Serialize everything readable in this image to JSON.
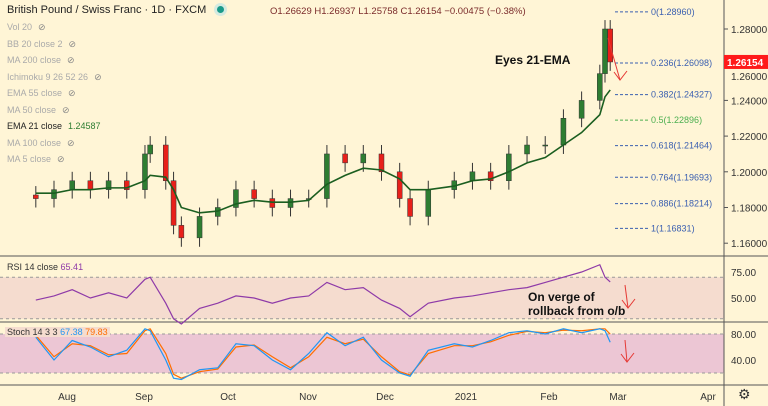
{
  "header": {
    "title": "British Pound / Swiss Franc · 1D · FXCM",
    "open": "O1.26629",
    "high": "H1.26937",
    "low": "L1.25758",
    "close": "C1.26154",
    "change": "−0.00475 (−0.38%)"
  },
  "indicators": [
    {
      "label": "Vol 20",
      "hidden": true
    },
    {
      "label": "BB 20 close 2",
      "hidden": true
    },
    {
      "label": "MA 200 close",
      "hidden": true
    },
    {
      "label": "Ichimoku 9 26 52 26",
      "hidden": true
    },
    {
      "label": "EMA 55 close",
      "hidden": true
    },
    {
      "label": "MA 50 close",
      "hidden": true
    },
    {
      "label": "EMA 21 close",
      "value": "1.24587",
      "hidden": false
    },
    {
      "label": "MA 100 close",
      "hidden": true
    },
    {
      "label": "MA 5 close",
      "hidden": true
    }
  ],
  "annotations": {
    "ema_note": "Eyes 21-EMA",
    "rsi_note_1": "On verge of",
    "rsi_note_2": "rollback from o/b"
  },
  "colors": {
    "up": "#2e7d32",
    "down": "#e8201a",
    "ema": "#1b5e20",
    "rsi": "#8e3aa8",
    "stoch_k": "#2196f3",
    "stoch_d": "#ff6d00",
    "current_price_bg": "#ff1a1a"
  },
  "chart_data": [
    {
      "type": "candlestick",
      "title": "British Pound / Swiss Franc · 1D · FXCM",
      "dates": [
        "2020-07-20",
        "2020-07-27",
        "2020-08-03",
        "2020-08-10",
        "2020-08-17",
        "2020-08-24",
        "2020-08-31",
        "2020-09-02",
        "2020-09-08",
        "2020-09-11",
        "2020-09-14",
        "2020-09-21",
        "2020-09-28",
        "2020-10-05",
        "2020-10-12",
        "2020-10-19",
        "2020-10-26",
        "2020-11-02",
        "2020-11-09",
        "2020-11-16",
        "2020-11-23",
        "2020-11-30",
        "2020-12-07",
        "2020-12-11",
        "2020-12-18",
        "2020-12-28",
        "2021-01-04",
        "2021-01-11",
        "2021-01-18",
        "2021-01-25",
        "2021-02-01",
        "2021-02-08",
        "2021-02-15",
        "2021-02-22",
        "2021-02-24",
        "2021-02-26"
      ],
      "close": [
        1.185,
        1.19,
        1.195,
        1.19,
        1.195,
        1.19,
        1.21,
        1.215,
        1.195,
        1.17,
        1.163,
        1.175,
        1.18,
        1.19,
        1.185,
        1.18,
        1.185,
        1.185,
        1.21,
        1.205,
        1.21,
        1.2,
        1.185,
        1.175,
        1.19,
        1.195,
        1.2,
        1.195,
        1.21,
        1.215,
        1.215,
        1.23,
        1.24,
        1.255,
        1.28,
        1.26154
      ],
      "ema21": [
        1.188,
        1.188,
        1.19,
        1.19,
        1.191,
        1.191,
        1.195,
        1.198,
        1.197,
        1.19,
        1.18,
        1.177,
        1.178,
        1.182,
        1.184,
        1.183,
        1.183,
        1.184,
        1.193,
        1.198,
        1.202,
        1.201,
        1.196,
        1.19,
        1.19,
        1.192,
        1.195,
        1.196,
        1.2,
        1.205,
        1.208,
        1.215,
        1.222,
        1.232,
        1.242,
        1.24587
      ],
      "ylim": [
        1.15,
        1.295
      ],
      "y_ticks": [
        "1.28000",
        "1.26000",
        "1.24000",
        "1.22000",
        "1.20000",
        "1.18000",
        "1.16000"
      ],
      "current_price": "1.26154",
      "fib_levels": [
        {
          "ratio": "0",
          "price": "1.28960"
        },
        {
          "ratio": "0.236",
          "price": "1.26098"
        },
        {
          "ratio": "0.382",
          "price": "1.24327"
        },
        {
          "ratio": "0.5",
          "price": "1.22896"
        },
        {
          "ratio": "0.618",
          "price": "1.21464"
        },
        {
          "ratio": "0.764",
          "price": "1.19693"
        },
        {
          "ratio": "0.886",
          "price": "1.18214"
        },
        {
          "ratio": "1",
          "price": "1.16831"
        }
      ],
      "x_ticks": [
        "Aug",
        "Sep",
        "Oct",
        "Nov",
        "Dec",
        "2021",
        "Feb",
        "Mar",
        "Apr"
      ]
    },
    {
      "type": "line",
      "title": "RSI 14 close",
      "last_value": "65.41",
      "ylim": [
        20,
        90
      ],
      "bands": [
        30,
        70
      ],
      "y_ticks": [
        "75.00",
        "50.00"
      ],
      "values": [
        48,
        52,
        58,
        50,
        55,
        50,
        68,
        70,
        45,
        30,
        25,
        40,
        45,
        52,
        50,
        45,
        50,
        52,
        65,
        58,
        60,
        48,
        40,
        32,
        45,
        50,
        52,
        55,
        58,
        60,
        65,
        70,
        75,
        82,
        70,
        65.41
      ]
    },
    {
      "type": "line",
      "title": "Stoch 14 3 3",
      "k_value": "67.38",
      "d_value": "79.83",
      "ylim": [
        0,
        100
      ],
      "bands": [
        20,
        80
      ],
      "y_ticks": [
        "80.00",
        "40.00"
      ],
      "k": [
        75,
        40,
        70,
        60,
        45,
        55,
        88,
        85,
        40,
        12,
        10,
        25,
        28,
        65,
        62,
        40,
        25,
        50,
        82,
        62,
        75,
        40,
        20,
        15,
        55,
        65,
        60,
        70,
        82,
        85,
        80,
        88,
        82,
        88,
        85,
        67.38
      ],
      "d": [
        78,
        45,
        65,
        62,
        48,
        50,
        85,
        88,
        50,
        18,
        12,
        22,
        26,
        60,
        63,
        45,
        28,
        45,
        75,
        65,
        72,
        45,
        22,
        17,
        50,
        62,
        62,
        68,
        78,
        84,
        82,
        86,
        85,
        88,
        88,
        79.83
      ]
    }
  ]
}
